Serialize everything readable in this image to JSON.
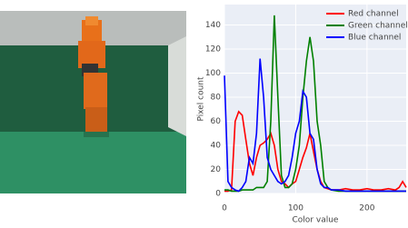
{
  "chart_data": {
    "type": "line",
    "x_label": "Color value",
    "y_label": "Pixel count",
    "x": [
      0,
      5,
      10,
      15,
      20,
      25,
      30,
      35,
      40,
      45,
      50,
      55,
      60,
      65,
      70,
      75,
      80,
      85,
      90,
      95,
      100,
      105,
      110,
      115,
      120,
      125,
      130,
      135,
      140,
      145,
      150,
      160,
      170,
      180,
      190,
      200,
      210,
      220,
      230,
      240,
      245,
      250,
      255
    ],
    "series": [
      {
        "name": "Red channel",
        "color": "#ff0000",
        "values": [
          2,
          2,
          3,
          60,
          68,
          65,
          45,
          25,
          15,
          30,
          40,
          42,
          45,
          50,
          40,
          20,
          10,
          8,
          5,
          8,
          10,
          20,
          30,
          38,
          50,
          35,
          20,
          10,
          5,
          4,
          3,
          3,
          4,
          3,
          3,
          4,
          3,
          3,
          4,
          3,
          5,
          10,
          5
        ]
      },
      {
        "name": "Green channel",
        "color": "#008000",
        "values": [
          3,
          3,
          2,
          2,
          2,
          3,
          3,
          3,
          3,
          5,
          5,
          5,
          10,
          60,
          148,
          80,
          15,
          5,
          5,
          8,
          20,
          40,
          80,
          110,
          130,
          110,
          60,
          40,
          10,
          5,
          3,
          2,
          2,
          2,
          2,
          2,
          2,
          2,
          2,
          2,
          2,
          2,
          2
        ]
      },
      {
        "name": "Blue channel",
        "color": "#0000ff",
        "values": [
          98,
          10,
          5,
          3,
          2,
          5,
          10,
          30,
          25,
          50,
          112,
          80,
          30,
          20,
          15,
          10,
          8,
          10,
          15,
          30,
          50,
          60,
          85,
          80,
          50,
          45,
          20,
          8,
          5,
          5,
          3,
          3,
          2,
          2,
          2,
          2,
          2,
          2,
          2,
          2,
          2,
          2,
          2
        ]
      }
    ],
    "xlim": [
      0,
      255
    ],
    "ylim": [
      -3,
      157
    ],
    "xticks": [
      0,
      100,
      200
    ],
    "yticks": [
      0,
      20,
      40,
      60,
      80,
      100,
      120,
      140
    ],
    "grid": true,
    "legend": "top-right"
  }
}
